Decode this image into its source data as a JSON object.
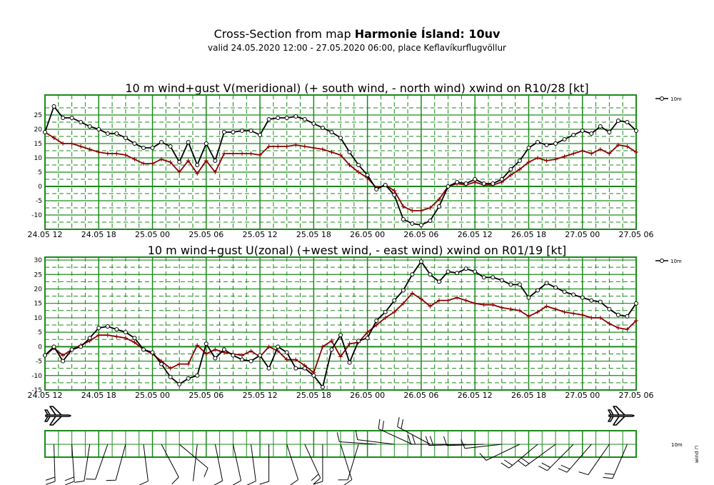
{
  "header": {
    "title_prefix": "Cross-Section from map ",
    "title_bold": "Harmonie Ísland: 10uv",
    "subtitle": "valid 24.05.2020 12:00 - 27.05.2020 06:00, place Keflavíkurflugvöllur"
  },
  "colors": {
    "grid": "#1a8a1a",
    "gust": "#000000",
    "wind": "#8b0000"
  },
  "wind_panel": {
    "legend_label": "10m",
    "axis_label": "wind ⊓"
  },
  "chart_data": [
    {
      "type": "line",
      "title": "10 m wind+gust V(meridional) (+ south wind, - north wind) xwind on R10/28 [kt]",
      "xlabels": [
        "24.05 12",
        "24.05 18",
        "25.05 00",
        "25.05 06",
        "25.05 12",
        "25.05 18",
        "26.05 00",
        "26.05 06",
        "26.05 12",
        "26.05 18",
        "27.05 00",
        "27.05 06"
      ],
      "ylim": [
        -15,
        32
      ],
      "yticks": [
        -10,
        -5,
        0,
        5,
        10,
        15,
        20,
        25
      ],
      "legend": "10m",
      "grid": true,
      "series": [
        {
          "values": [
            19,
            28,
            24,
            24,
            22.5,
            21,
            20,
            18.5,
            18.5,
            17,
            15,
            13.5,
            13.5,
            15.5,
            14,
            8.5,
            15.5,
            7.5,
            15,
            9,
            19,
            19,
            19.5,
            19.5,
            18,
            23.5,
            24,
            24,
            24.5,
            23.5,
            22,
            20.5,
            19,
            17,
            12,
            7.5,
            4,
            -1,
            0.5,
            -3,
            -11.5,
            -13,
            -13.5,
            -12,
            -7,
            0,
            1.5,
            1,
            2.5,
            1,
            1,
            2.5,
            6,
            9,
            13.5,
            15.5,
            14.5,
            15,
            16.5,
            18,
            19.5,
            18.5,
            21,
            19,
            23,
            22.5,
            19.5
          ]
        },
        {
          "values": [
            19,
            17,
            15,
            15,
            14,
            13,
            12,
            11.5,
            11.5,
            11,
            9.5,
            8,
            8,
            9.5,
            8.5,
            5,
            9,
            4.5,
            9,
            5,
            11.5,
            11.5,
            11.5,
            11.5,
            11,
            14,
            14,
            14,
            14.5,
            14,
            13.5,
            13,
            12,
            11,
            7.5,
            5,
            3,
            -0.5,
            0.5,
            -1.5,
            -7,
            -8.5,
            -8.5,
            -7.5,
            -4.5,
            0,
            1,
            0.5,
            1.5,
            0.5,
            0.5,
            1.5,
            4,
            6,
            8.5,
            10,
            9,
            9.5,
            10.5,
            11.5,
            12.5,
            11.5,
            13,
            11.5,
            14.5,
            14,
            12
          ]
        }
      ]
    },
    {
      "type": "line",
      "title": "10 m wind+gust U(zonal) (+west wind, - east wind) xwind on R01/19 [kt]",
      "xlabels": [
        "24.05 12",
        "24.05 18",
        "25.05 00",
        "25.05 06",
        "25.05 12",
        "25.05 18",
        "26.05 00",
        "26.05 06",
        "26.05 12",
        "26.05 18",
        "27.05 00",
        "27.05 06"
      ],
      "ylim": [
        -15,
        31
      ],
      "yticks": [
        -15,
        -10,
        -5,
        0,
        5,
        10,
        15,
        20,
        25,
        30
      ],
      "legend": "10m",
      "grid": true,
      "series": [
        {
          "values": [
            -3,
            0,
            -5,
            -1,
            0,
            3,
            6.5,
            7,
            6,
            5,
            3,
            -1,
            -2,
            -6,
            -10.5,
            -13,
            -11,
            -10,
            1,
            -4,
            -1,
            -3,
            -4.5,
            -5,
            -3,
            -7.5,
            0,
            -2,
            -7.5,
            -7.5,
            -10,
            -14,
            -1,
            4,
            -5.5,
            2,
            3,
            9,
            12,
            16,
            19.5,
            25,
            29.5,
            25,
            22.5,
            26,
            25.5,
            27,
            26,
            24,
            24,
            23,
            21.5,
            21.5,
            17,
            19.5,
            22,
            20.5,
            19,
            18,
            17,
            16,
            15.5,
            13,
            11,
            10.5,
            15
          ]
        },
        {
          "values": [
            -3,
            -0.5,
            -3,
            -1,
            0.5,
            2,
            4,
            4,
            3.5,
            3,
            1.5,
            -1,
            -2.5,
            -5,
            -7.5,
            -6,
            -6,
            0.5,
            -2.5,
            -1,
            -2,
            -2.5,
            -3,
            -1.5,
            -3.5,
            0,
            -1.5,
            -4.5,
            -4.5,
            -6.5,
            -9,
            0,
            2,
            -3.5,
            1,
            1.5,
            5,
            7.5,
            10,
            12,
            15,
            18.5,
            16.5,
            14,
            16,
            16,
            17,
            16,
            15,
            14.5,
            14.5,
            13.5,
            13,
            12.5,
            10.5,
            12,
            14,
            13,
            12,
            11.5,
            11,
            10,
            10,
            8,
            6.5,
            6,
            9
          ]
        }
      ]
    }
  ]
}
